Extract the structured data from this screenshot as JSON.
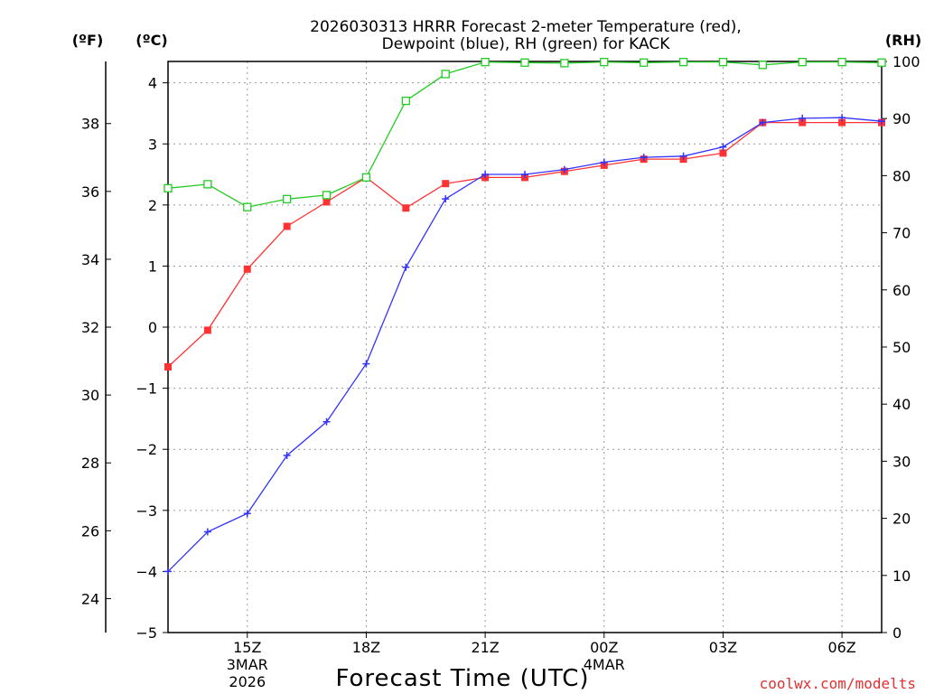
{
  "chart_data": {
    "type": "line",
    "title_line1": "2026030313 HRRR Forecast 2-meter Temperature (red),",
    "title_line2": "Dewpoint (blue), RH (green) for KACK",
    "unit_left_f": "(ºF)",
    "unit_left_c": "(ºC)",
    "unit_right": "(RH)",
    "xlabel": "Forecast Time (UTC)",
    "credit": "coolwx.com/modelts",
    "x_hours": [
      13,
      14,
      15,
      16,
      17,
      18,
      19,
      20,
      21,
      22,
      23,
      24,
      25,
      26,
      27,
      28,
      29,
      30,
      31
    ],
    "xlim": [
      13,
      31
    ],
    "x_ticks": [
      {
        "hour": 15,
        "label": "15Z",
        "sub1": "3MAR",
        "sub2": "2026"
      },
      {
        "hour": 18,
        "label": "18Z",
        "sub1": "",
        "sub2": ""
      },
      {
        "hour": 21,
        "label": "21Z",
        "sub1": "",
        "sub2": ""
      },
      {
        "hour": 24,
        "label": "00Z",
        "sub1": "4MAR",
        "sub2": ""
      },
      {
        "hour": 27,
        "label": "03Z",
        "sub1": "",
        "sub2": ""
      },
      {
        "hour": 30,
        "label": "06Z",
        "sub1": "",
        "sub2": ""
      }
    ],
    "ylim_c": [
      -5,
      4.35
    ],
    "y_ticks_c": [
      "−5",
      "−4",
      "−3",
      "−2",
      "−1",
      "0",
      "1",
      "2",
      "3",
      "4"
    ],
    "y_ticks_c_values": [
      -5,
      -4,
      -3,
      -2,
      -1,
      0,
      1,
      2,
      3,
      4
    ],
    "y_ticks_f": [
      "24",
      "26",
      "28",
      "30",
      "32",
      "34",
      "36",
      "38"
    ],
    "y_ticks_f_values": [
      24,
      26,
      28,
      30,
      32,
      34,
      36,
      38
    ],
    "ylim_rh": [
      0,
      100
    ],
    "y_ticks_rh": [
      "0",
      "10",
      "20",
      "30",
      "40",
      "50",
      "60",
      "70",
      "80",
      "90",
      "100"
    ],
    "y_ticks_rh_values": [
      0,
      10,
      20,
      30,
      40,
      50,
      60,
      70,
      80,
      90,
      100
    ],
    "series": [
      {
        "name": "Temperature",
        "unit": "C",
        "color": "#ff3333",
        "marker": "filled-square",
        "values": [
          -0.65,
          -0.05,
          0.95,
          1.65,
          2.05,
          2.45,
          1.95,
          2.35,
          2.45,
          2.45,
          2.55,
          2.65,
          2.75,
          2.75,
          2.85,
          3.35,
          3.35,
          3.35,
          3.35
        ]
      },
      {
        "name": "Dewpoint",
        "unit": "C",
        "color": "#3333ff",
        "marker": "plus",
        "values": [
          -4.0,
          -3.35,
          -3.05,
          -2.1,
          -1.55,
          -0.6,
          0.98,
          2.1,
          2.5,
          2.5,
          2.58,
          2.7,
          2.78,
          2.8,
          2.95,
          3.35,
          3.42,
          3.43,
          3.37
        ]
      },
      {
        "name": "RH",
        "unit": "%",
        "color": "#22cc22",
        "marker": "open-square",
        "values": [
          77.8,
          78.5,
          74.5,
          75.9,
          76.6,
          79.7,
          93.1,
          97.8,
          99.9,
          99.8,
          99.7,
          99.9,
          99.8,
          99.9,
          99.9,
          99.4,
          99.9,
          99.9,
          99.8
        ]
      }
    ]
  }
}
